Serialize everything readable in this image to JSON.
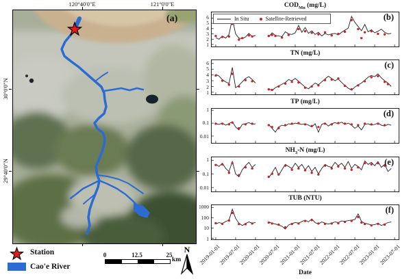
{
  "map": {
    "panel_label": "(a)",
    "lon_labels": [
      "120°40'0\"E",
      "121°0'0\"E"
    ],
    "lat_labels": [
      "30°0'0\"N",
      "29°40'0\"N"
    ],
    "legend": {
      "station": "Station",
      "river": "Cao'e River"
    },
    "scalebar": {
      "start": "0",
      "mid": "12.5",
      "end": "25",
      "unit": "km"
    },
    "north": "N",
    "colors": {
      "river": "#2b6bd3",
      "station_star": "#e31a1c"
    }
  },
  "chart_data": {
    "type": "line",
    "legend": {
      "in_situ": "In Situ",
      "satellite": "Satellite-Retrieved"
    },
    "legend_position": "upper-left of panel (b)",
    "colors": {
      "in_situ": "#1a1a1a",
      "satellite": "#cf1f1f",
      "legend_line": "#8a8a8a"
    },
    "xlabel": "Date",
    "x_tick_labels": [
      "2019-01-01",
      "2019-07-01",
      "2020-01-01",
      "2020-07-01",
      "2021-01-01",
      "2021-07-01",
      "2022-01-01",
      "2022-07-01",
      "2023-01-01",
      "2023-07-01"
    ],
    "categories": [
      "2019-01",
      "2019-02",
      "2019-03",
      "2019-04",
      "2019-05",
      "2019-06",
      "2019-07",
      "2019-08",
      "2019-09",
      "2019-10",
      "2019-11",
      "2019-12",
      "2020-01",
      "2020-02",
      "2020-03",
      "2020-04",
      "2020-05",
      "2020-06",
      "2020-07",
      "2020-08",
      "2020-09",
      "2020-10",
      "2020-11",
      "2020-12",
      "2021-01",
      "2021-02",
      "2021-03",
      "2021-04",
      "2021-05",
      "2021-06",
      "2021-07",
      "2021-08",
      "2021-09",
      "2021-10",
      "2021-11",
      "2021-12",
      "2022-01",
      "2022-02",
      "2022-03",
      "2022-04",
      "2022-05",
      "2022-06",
      "2022-07",
      "2022-08",
      "2022-09",
      "2022-10",
      "2022-11",
      "2022-12",
      "2023-01",
      "2023-02",
      "2023-03",
      "2023-04",
      "2023-05",
      "2023-06"
    ],
    "panels": [
      {
        "label": "(b)",
        "title_main": "COD",
        "title_sub": "Mn",
        "title_rest": " (mg/L)",
        "scale": "linear",
        "ylim": [
          0.8,
          6.9
        ],
        "yticks": [
          1,
          2,
          3,
          4,
          5,
          6
        ],
        "ytick_labels": [
          "1",
          "2",
          "3",
          "4",
          "5",
          "6"
        ],
        "in_situ": [
          2.3,
          2.0,
          2.6,
          2.2,
          2.9,
          5.9,
          3.0,
          2.2,
          2.1,
          2.4,
          3.1,
          2.5,
          2.7,
          null,
          null,
          null,
          2.4,
          3.2,
          2.7,
          2.6,
          2.5,
          3.4,
          3.0,
          2.9,
          3.2,
          4.6,
          3.3,
          4.2,
          3.1,
          3.6,
          2.9,
          3.3,
          2.6,
          3.1,
          2.8,
          3.0,
          3.1,
          2.8,
          3.3,
          3.7,
          4.1,
          6.3,
          5.2,
          4.4,
          3.6,
          4.8,
          3.4,
          3.8,
          3.2,
          3.5,
          3.9,
          3.3,
          3.0,
          3.1
        ],
        "satellite": [
          2.6,
          null,
          2.4,
          null,
          2.5,
          4.9,
          null,
          1.9,
          2.2,
          null,
          2.7,
          2.5,
          null,
          null,
          null,
          null,
          2.6,
          2.8,
          2.6,
          null,
          2.3,
          null,
          2.8,
          null,
          null,
          3.9,
          null,
          3.5,
          null,
          3.2,
          null,
          2.9,
          null,
          3.3,
          null,
          2.7,
          null,
          3.0,
          null,
          3.4,
          null,
          5.6,
          null,
          3.9,
          2.2,
          3.3,
          null,
          3.5,
          null,
          3.0,
          null,
          2.9,
          null,
          null
        ]
      },
      {
        "label": "(c)",
        "title_main": "TN",
        "title_sub": "",
        "title_rest": " (mg/L)",
        "scale": "linear",
        "ylim": [
          0.8,
          6.4
        ],
        "yticks": [
          1,
          2,
          3,
          4,
          5,
          6
        ],
        "ytick_labels": [
          "1",
          "2",
          "3",
          "4",
          "5",
          "6"
        ],
        "in_situ": [
          4.1,
          3.8,
          3.2,
          2.8,
          2.5,
          5.3,
          1.8,
          2.2,
          2.8,
          3.4,
          3.7,
          3.2,
          2.6,
          null,
          null,
          null,
          1.6,
          1.3,
          1.8,
          2.1,
          2.4,
          2.7,
          3.2,
          3.0,
          3.4,
          2.9,
          2.4,
          1.9,
          1.6,
          2.1,
          2.6,
          2.3,
          2.8,
          3.3,
          3.8,
          3.4,
          3.0,
          3.3,
          2.7,
          2.2,
          1.7,
          1.4,
          1.9,
          2.3,
          2.6,
          3.1,
          3.6,
          3.9,
          3.7,
          4.2,
          3.5,
          3.0,
          2.6,
          2.0
        ],
        "satellite": [
          3.9,
          null,
          3.0,
          null,
          2.3,
          4.2,
          null,
          2.0,
          null,
          3.1,
          null,
          2.9,
          null,
          null,
          null,
          null,
          1.5,
          1.4,
          null,
          2.0,
          null,
          2.5,
          null,
          2.8,
          null,
          2.7,
          null,
          1.8,
          null,
          2.0,
          null,
          2.2,
          null,
          3.1,
          null,
          3.2,
          null,
          3.4,
          null,
          2.1,
          null,
          1.5,
          null,
          2.2,
          null,
          2.9,
          null,
          3.6,
          null,
          3.8,
          null,
          2.8,
          2.4,
          null
        ]
      },
      {
        "label": "(d)",
        "title_main": "TP",
        "title_sub": "",
        "title_rest": " (mg/L)",
        "scale": "log",
        "ylim": [
          0.0035,
          1.1
        ],
        "yticks": [
          1,
          0.1,
          0.01
        ],
        "ytick_labels": [
          "1",
          "0.1",
          "0.01"
        ],
        "in_situ": [
          0.09,
          0.08,
          0.1,
          0.07,
          0.09,
          0.13,
          0.05,
          0.03,
          0.08,
          0.09,
          0.11,
          0.08,
          0.09,
          null,
          null,
          null,
          0.08,
          0.04,
          0.02,
          0.05,
          0.07,
          0.06,
          0.09,
          0.08,
          0.1,
          0.09,
          0.08,
          0.09,
          0.07,
          0.05,
          0.09,
          0.02,
          0.08,
          0.1,
          0.06,
          0.09,
          0.11,
          0.09,
          0.12,
          0.08,
          0.1,
          0.07,
          0.04,
          0.06,
          0.03,
          0.08,
          0.09,
          0.07,
          0.08,
          0.1,
          0.07,
          0.06,
          0.08,
          0.07
        ],
        "satellite": [
          0.09,
          null,
          0.09,
          null,
          0.08,
          0.11,
          null,
          0.04,
          null,
          0.08,
          null,
          0.09,
          null,
          null,
          null,
          null,
          0.07,
          0.05,
          null,
          0.04,
          null,
          0.07,
          null,
          0.09,
          null,
          0.1,
          null,
          0.08,
          null,
          0.06,
          null,
          0.05,
          null,
          0.09,
          null,
          0.08,
          null,
          0.1,
          null,
          0.09,
          null,
          0.08,
          null,
          0.07,
          null,
          0.09,
          null,
          0.08,
          null,
          0.09,
          null,
          0.07,
          null,
          null
        ]
      },
      {
        "label": "(e)",
        "title_main": "NH",
        "title_sub": "3",
        "title_rest": "-N (mg/L)",
        "scale": "log",
        "ylim": [
          0.006,
          1.4
        ],
        "yticks": [
          1,
          0.1,
          0.01
        ],
        "ytick_labels": [
          "1",
          "0.1",
          "0.01"
        ],
        "in_situ": [
          0.5,
          0.35,
          0.6,
          0.25,
          0.15,
          0.8,
          0.1,
          0.06,
          0.2,
          0.4,
          0.7,
          0.3,
          0.5,
          null,
          null,
          null,
          0.05,
          0.12,
          0.3,
          0.08,
          0.2,
          0.5,
          0.35,
          0.25,
          0.6,
          0.3,
          0.5,
          0.2,
          0.4,
          0.15,
          0.3,
          0.1,
          0.25,
          0.5,
          0.35,
          0.3,
          0.7,
          0.4,
          0.6,
          0.3,
          0.8,
          0.25,
          0.5,
          0.35,
          0.2,
          0.9,
          0.5,
          0.7,
          0.4,
          0.8,
          0.3,
          0.5,
          0.15,
          0.25
        ],
        "satellite": [
          0.45,
          null,
          0.5,
          null,
          0.12,
          0.6,
          null,
          0.08,
          null,
          0.3,
          null,
          0.25,
          null,
          null,
          null,
          null,
          0.06,
          0.1,
          null,
          0.09,
          null,
          0.4,
          null,
          0.2,
          null,
          0.25,
          null,
          0.18,
          null,
          0.12,
          null,
          0.09,
          null,
          0.4,
          null,
          0.25,
          null,
          0.35,
          null,
          0.25,
          null,
          0.2,
          null,
          0.3,
          null,
          0.6,
          null,
          0.5,
          null,
          0.6,
          null,
          0.4,
          null,
          null
        ]
      },
      {
        "label": "(f)",
        "title_main": "TUB",
        "title_sub": "",
        "title_rest": " (NTU)",
        "scale": "log",
        "ylim": [
          1,
          1400
        ],
        "yticks": [
          1000,
          100,
          10,
          1
        ],
        "ytick_labels": [
          "1000",
          "100",
          "10",
          "1"
        ],
        "in_situ": [
          25,
          35,
          28,
          45,
          60,
          700,
          90,
          30,
          18,
          28,
          40,
          30,
          35,
          null,
          null,
          null,
          40,
          30,
          25,
          20,
          15,
          8,
          20,
          28,
          35,
          30,
          45,
          60,
          40,
          80,
          35,
          25,
          40,
          30,
          25,
          30,
          40,
          35,
          50,
          45,
          55,
          60,
          70,
          250,
          45,
          30,
          25,
          20,
          22,
          30,
          18,
          25,
          35,
          40
        ],
        "satellite": [
          30,
          null,
          26,
          null,
          55,
          300,
          null,
          25,
          null,
          24,
          null,
          28,
          null,
          null,
          null,
          null,
          35,
          28,
          null,
          22,
          null,
          12,
          null,
          25,
          null,
          28,
          null,
          50,
          null,
          60,
          null,
          28,
          null,
          26,
          null,
          28,
          null,
          30,
          null,
          40,
          null,
          50,
          null,
          120,
          35,
          25,
          null,
          18,
          null,
          26,
          null,
          22,
          null,
          null
        ]
      }
    ]
  }
}
